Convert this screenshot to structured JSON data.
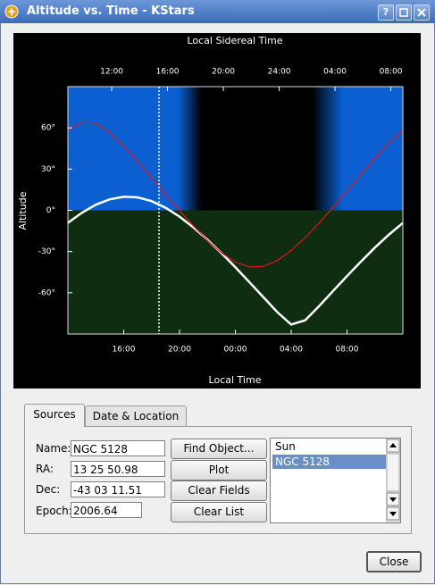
{
  "window": {
    "title": "Altitude vs. Time - KStars",
    "help": "?"
  },
  "chart_data": {
    "type": "line",
    "x_label": "Local Time",
    "x2_label": "Local Sidereal Time",
    "y_label": "Altitude",
    "x": [
      12,
      13,
      14,
      15,
      16,
      17,
      18,
      19,
      20,
      21,
      22,
      23,
      24,
      25,
      26,
      27,
      28,
      29,
      30,
      31,
      32,
      33,
      34,
      35,
      36
    ],
    "series": [
      {
        "color": "#ffffff",
        "values": [
          -9.1,
          -1.8,
          4.1,
          8.0,
          9.9,
          9.4,
          6.7,
          1.9,
          -4.6,
          -12.5,
          -21.4,
          -31.1,
          -41.4,
          -52.2,
          -63.1,
          -74.0,
          -83.1,
          -80.0,
          -69.7,
          -58.7,
          -47.8,
          -37.3,
          -27.1,
          -17.7,
          -9.2
        ]
      },
      {
        "color": "#e0141e",
        "values": [
          58.3,
          64.0,
          63.3,
          56.6,
          46.7,
          35.4,
          23.6,
          11.7,
          -0.1,
          -11.4,
          -21.9,
          -30.9,
          -37.7,
          -41.2,
          -40.8,
          -36.5,
          -29.2,
          -19.9,
          -9.3,
          2.2,
          14.0,
          26.0,
          37.8,
          48.9,
          58.3
        ]
      }
    ],
    "xlim": [
      12,
      36
    ],
    "xticks": [
      {
        "value": 16,
        "label": "16:00"
      },
      {
        "value": 20,
        "label": "20:00"
      },
      {
        "value": 24,
        "label": "00:00"
      },
      {
        "value": 28,
        "label": "04:00"
      },
      {
        "value": 32,
        "label": "08:00"
      }
    ],
    "x2lim": [
      8.86,
      32.86
    ],
    "x2ticks": [
      {
        "value": 12,
        "label": "12:00"
      },
      {
        "value": 16,
        "label": "16:00"
      },
      {
        "value": 20,
        "label": "20:00"
      },
      {
        "value": 24,
        "label": "24:00"
      },
      {
        "value": 28,
        "label": "04:00"
      },
      {
        "value": 32,
        "label": "08:00"
      }
    ],
    "ylim": [
      -90,
      90
    ],
    "yticks": [
      {
        "value": 60,
        "label": "60°"
      },
      {
        "value": 30,
        "label": "30°"
      },
      {
        "value": 0,
        "label": "0°"
      },
      {
        "value": -30,
        "label": "-30°"
      },
      {
        "value": -60,
        "label": "-60°"
      }
    ]
  },
  "tabs": [
    "Sources",
    "Date & Location"
  ],
  "fields": [
    {
      "label": "Name:",
      "value": "NGC 5128"
    },
    {
      "label": "RA:",
      "value": "13 25 50.98"
    },
    {
      "label": "Dec:",
      "value": "-43 03 11.51"
    },
    {
      "label": "Epoch:",
      "value": "2006.64"
    }
  ],
  "buttons": [
    "Find Object...",
    "Plot",
    "Clear Fields",
    "Clear List"
  ],
  "list": [
    "Sun",
    "NGC 5128"
  ],
  "close": "Close"
}
